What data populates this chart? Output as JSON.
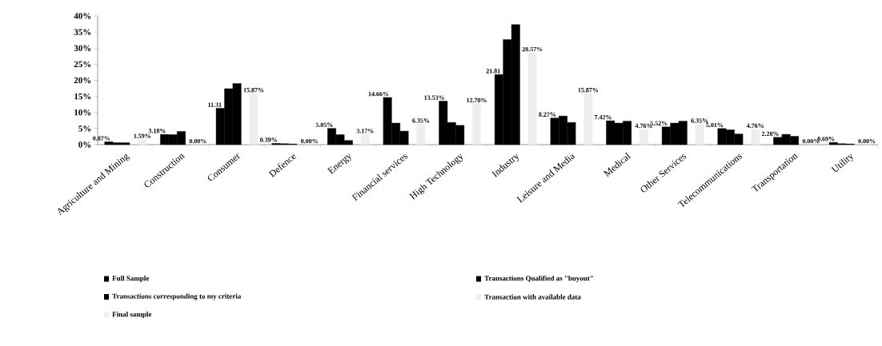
{
  "chart_data": {
    "type": "bar",
    "categories": [
      "Agriculture and Mining",
      "Construction",
      "Consumer",
      "Defence",
      "Energy",
      "Financial services",
      "High Technology",
      "Industry",
      "Leisure and Media",
      "Medical",
      "Other Services",
      "Telecommunications",
      "Transportation",
      "Utility"
    ],
    "series": [
      {
        "name": "Full Sample",
        "color": "#000000",
        "values": [
          0.87,
          3.18,
          11.31,
          0.39,
          5.05,
          14.66,
          13.53,
          21.81,
          8.27,
          7.42,
          5.52,
          5.01,
          2.28,
          0.69
        ],
        "value_labels": [
          "0.87%",
          "3.18%",
          "11.31",
          "0.39%",
          "5.05%",
          "14.66%",
          "13.53%",
          "21.81",
          "8.27%",
          "7.42%",
          "5.52%",
          "5.01%",
          "2.28%",
          "0.69%"
        ]
      },
      {
        "name": "Transactions Qualified as \"buyout\"",
        "color": "#000000",
        "values": [
          0.6,
          3.1,
          17.4,
          0.3,
          3.1,
          6.7,
          6.9,
          32.7,
          8.9,
          6.7,
          6.7,
          4.6,
          3.2,
          0.3
        ]
      },
      {
        "name": "Transactions corresponding to my criteria",
        "color": "#000000",
        "values": [
          0.6,
          4.1,
          19.0,
          0.2,
          1.3,
          4.2,
          6.0,
          37.3,
          6.9,
          7.3,
          7.3,
          3.3,
          2.6,
          0.2
        ]
      },
      {
        "name": "Transaction with available data",
        "color": "#eeeeee",
        "values": [
          null,
          null,
          null,
          null,
          null,
          null,
          null,
          null,
          null,
          null,
          null,
          null,
          null,
          null
        ]
      },
      {
        "name": "Final sample",
        "color": "#eeeeee",
        "values": [
          1.59,
          0.0,
          15.87,
          0.0,
          3.17,
          6.35,
          12.7,
          28.57,
          15.87,
          4.76,
          6.35,
          4.76,
          0.0,
          0.0
        ],
        "value_labels": [
          "1.59%",
          "0.00%",
          "15.87%",
          "0.00%",
          "3.17%",
          "6.35%",
          "12.70%",
          "28.57%",
          "15.87%",
          "4.76%",
          "6.35%",
          "4.76%",
          "0.00%",
          "0.00%"
        ]
      }
    ],
    "ylim": [
      0,
      40
    ],
    "yticks": [
      {
        "value": 0,
        "label": "0%"
      },
      {
        "value": 5,
        "label": "5%"
      },
      {
        "value": 10,
        "label": "10%"
      },
      {
        "value": 15,
        "label": "15%"
      },
      {
        "value": 20,
        "label": "20%"
      },
      {
        "value": 25,
        "label": "25%"
      },
      {
        "value": 30,
        "label": "30%"
      },
      {
        "value": 35,
        "label": "35%"
      },
      {
        "value": 40,
        "label": "40%"
      }
    ],
    "grid": false,
    "legend": "bottom"
  }
}
